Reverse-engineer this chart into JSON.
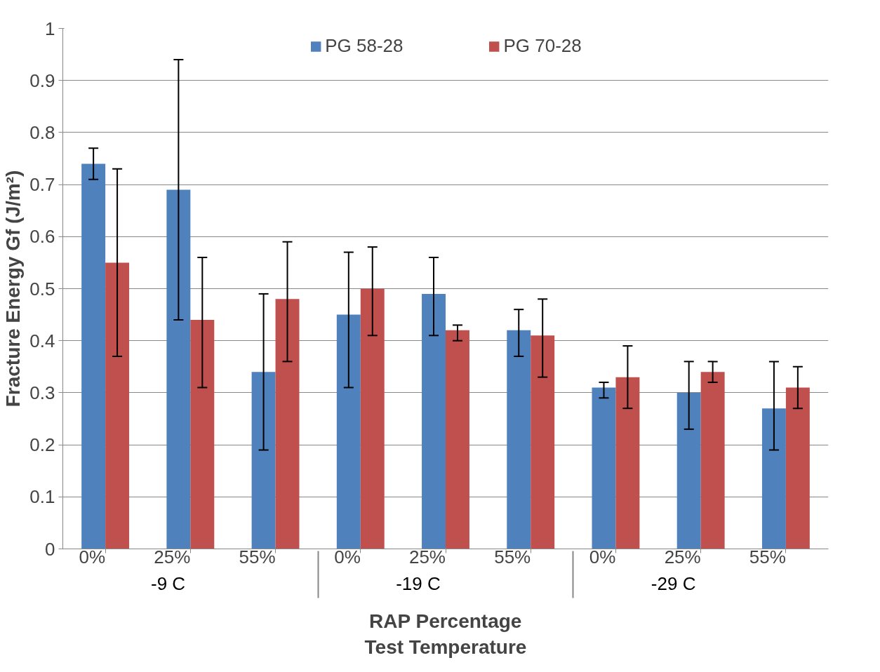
{
  "chart_data": {
    "type": "bar",
    "xlabel": "RAP Percentage\nTest Temperature",
    "ylabel": "Fracture Energy Gf (J/m²)",
    "categories": [
      "0%",
      "25%",
      "55%",
      "0%",
      "25%",
      "55%",
      "0%",
      "25%",
      "55%"
    ],
    "annotations": [
      "-9  C",
      "-19  C",
      "-29  C"
    ],
    "series": [
      {
        "name": "PG 58-28",
        "color": "#4f81bd",
        "values": [
          0.74,
          0.69,
          0.34,
          0.45,
          0.49,
          0.42,
          0.31,
          0.3,
          0.27
        ],
        "errors": [
          [
            0.71,
            0.77
          ],
          [
            0.44,
            0.94
          ],
          [
            0.19,
            0.49
          ],
          [
            0.31,
            0.57
          ],
          [
            0.41,
            0.56
          ],
          [
            0.37,
            0.46
          ],
          [
            0.29,
            0.32
          ],
          [
            0.23,
            0.36
          ],
          [
            0.19,
            0.36
          ]
        ]
      },
      {
        "name": "PG 70-28",
        "color": "#c0504d",
        "values": [
          0.55,
          0.44,
          0.48,
          0.5,
          0.42,
          0.41,
          0.33,
          0.34,
          0.31
        ],
        "errors": [
          [
            0.37,
            0.73
          ],
          [
            0.31,
            0.56
          ],
          [
            0.36,
            0.59
          ],
          [
            0.41,
            0.58
          ],
          [
            0.4,
            0.43
          ],
          [
            0.33,
            0.48
          ],
          [
            0.27,
            0.39
          ],
          [
            0.32,
            0.36
          ],
          [
            0.27,
            0.35
          ]
        ]
      }
    ],
    "ylim": [
      0,
      1
    ],
    "yticks": [
      0,
      {
        "value": 0.1,
        "label": "0.1"
      },
      {
        "value": 0.2,
        "label": "0.2"
      },
      {
        "value": 0.3,
        "label": "0.3"
      },
      {
        "value": 0.4,
        "label": "0.4"
      },
      {
        "value": 0.5,
        "label": "0.5"
      },
      {
        "value": 0.6,
        "label": "0.6"
      },
      {
        "value": 0.7,
        "label": "0.7"
      },
      {
        "value": 0.8,
        "label": "0.8"
      },
      {
        "value": 0.9,
        "label": "0.9"
      },
      1
    ],
    "grid": "y",
    "legend": "top"
  }
}
